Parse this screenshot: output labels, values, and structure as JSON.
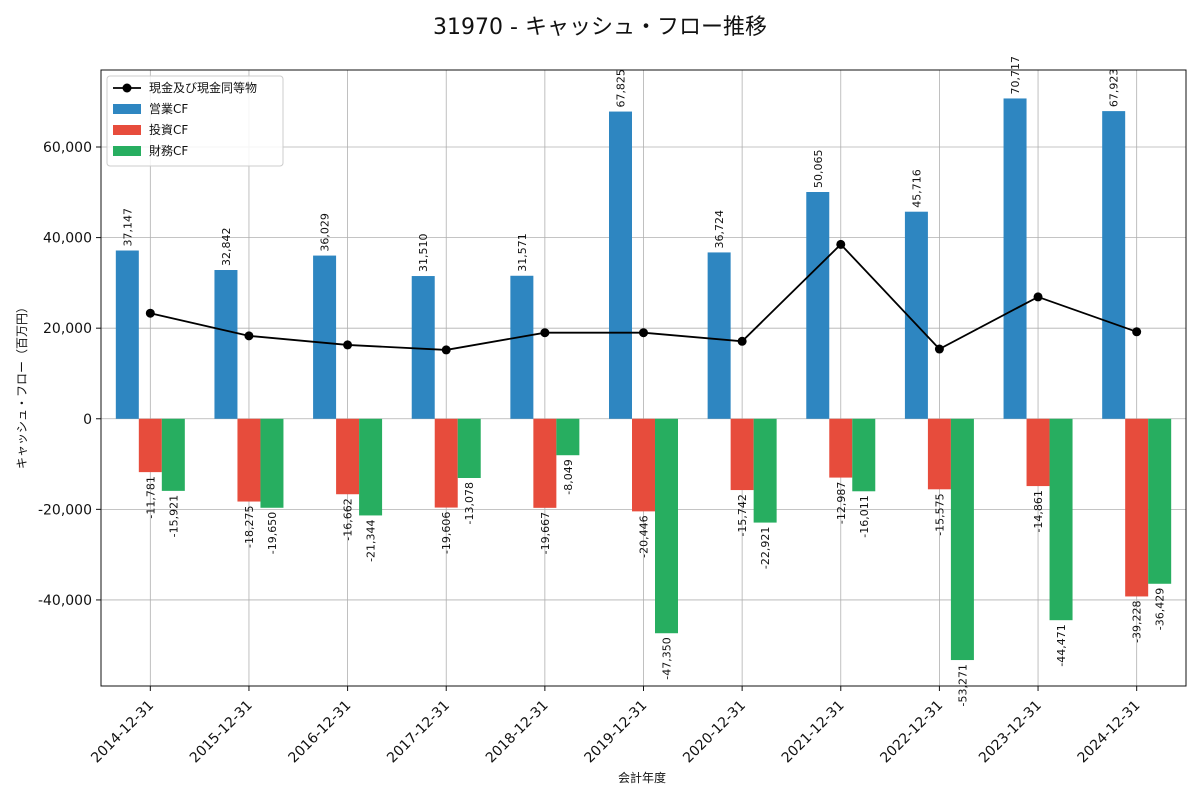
{
  "chart_data": {
    "type": "bar",
    "title": "31970 - キャッシュ・フロー推移",
    "xlabel": "会計年度",
    "ylabel": "キャッシュ・フロー（百万円）",
    "ylim": [
      -59000,
      77000
    ],
    "yticks": [
      -40000,
      -20000,
      0,
      20000,
      40000,
      60000
    ],
    "ytick_labels": [
      "-40,000",
      "-20,000",
      "0",
      "20,000",
      "40,000",
      "60,000"
    ],
    "grid": true,
    "legend_position": "top-left",
    "categories": [
      "2014-12-31",
      "2015-12-31",
      "2016-12-31",
      "2017-12-31",
      "2018-12-31",
      "2019-12-31",
      "2020-12-31",
      "2021-12-31",
      "2022-12-31",
      "2023-12-31",
      "2024-12-31"
    ],
    "series": [
      {
        "name": "営業CF",
        "kind": "bar",
        "color": "#2e86c1",
        "values": [
          37147,
          32842,
          36029,
          31510,
          31571,
          67825,
          36724,
          50065,
          45716,
          70717,
          67923
        ],
        "labels": [
          "37,147",
          "32,842",
          "36,029",
          "31,510",
          "31,571",
          "67,825",
          "36,724",
          "50,065",
          "45,716",
          "70,717",
          "67,923"
        ]
      },
      {
        "name": "投資CF",
        "kind": "bar",
        "color": "#e74c3c",
        "values": [
          -11781,
          -18275,
          -16662,
          -19606,
          -19667,
          -20446,
          -15742,
          -12987,
          -15575,
          -14861,
          -39228
        ],
        "labels": [
          "-11,781",
          "-18,275",
          "-16,662",
          "-19,606",
          "-19,667",
          "-20,446",
          "-15,742",
          "-12,987",
          "-15,575",
          "-14,861",
          "-39,228"
        ]
      },
      {
        "name": "財務CF",
        "kind": "bar",
        "color": "#27ae60",
        "values": [
          -15921,
          -19650,
          -21344,
          -13078,
          -8049,
          -47350,
          -22921,
          -16011,
          -53271,
          -44471,
          -36429
        ],
        "labels": [
          "-15,921",
          "-19,650",
          "-21,344",
          "-13,078",
          "-8,049",
          "-47,350",
          "-22,921",
          "-16,011",
          "-53,271",
          "-44,471",
          "-36,429"
        ]
      },
      {
        "name": "現金及び現金同等物",
        "kind": "line",
        "color": "#000000",
        "values": [
          23300,
          18300,
          16300,
          15200,
          19000,
          19000,
          17100,
          38500,
          15400,
          26900,
          19200
        ]
      }
    ]
  }
}
